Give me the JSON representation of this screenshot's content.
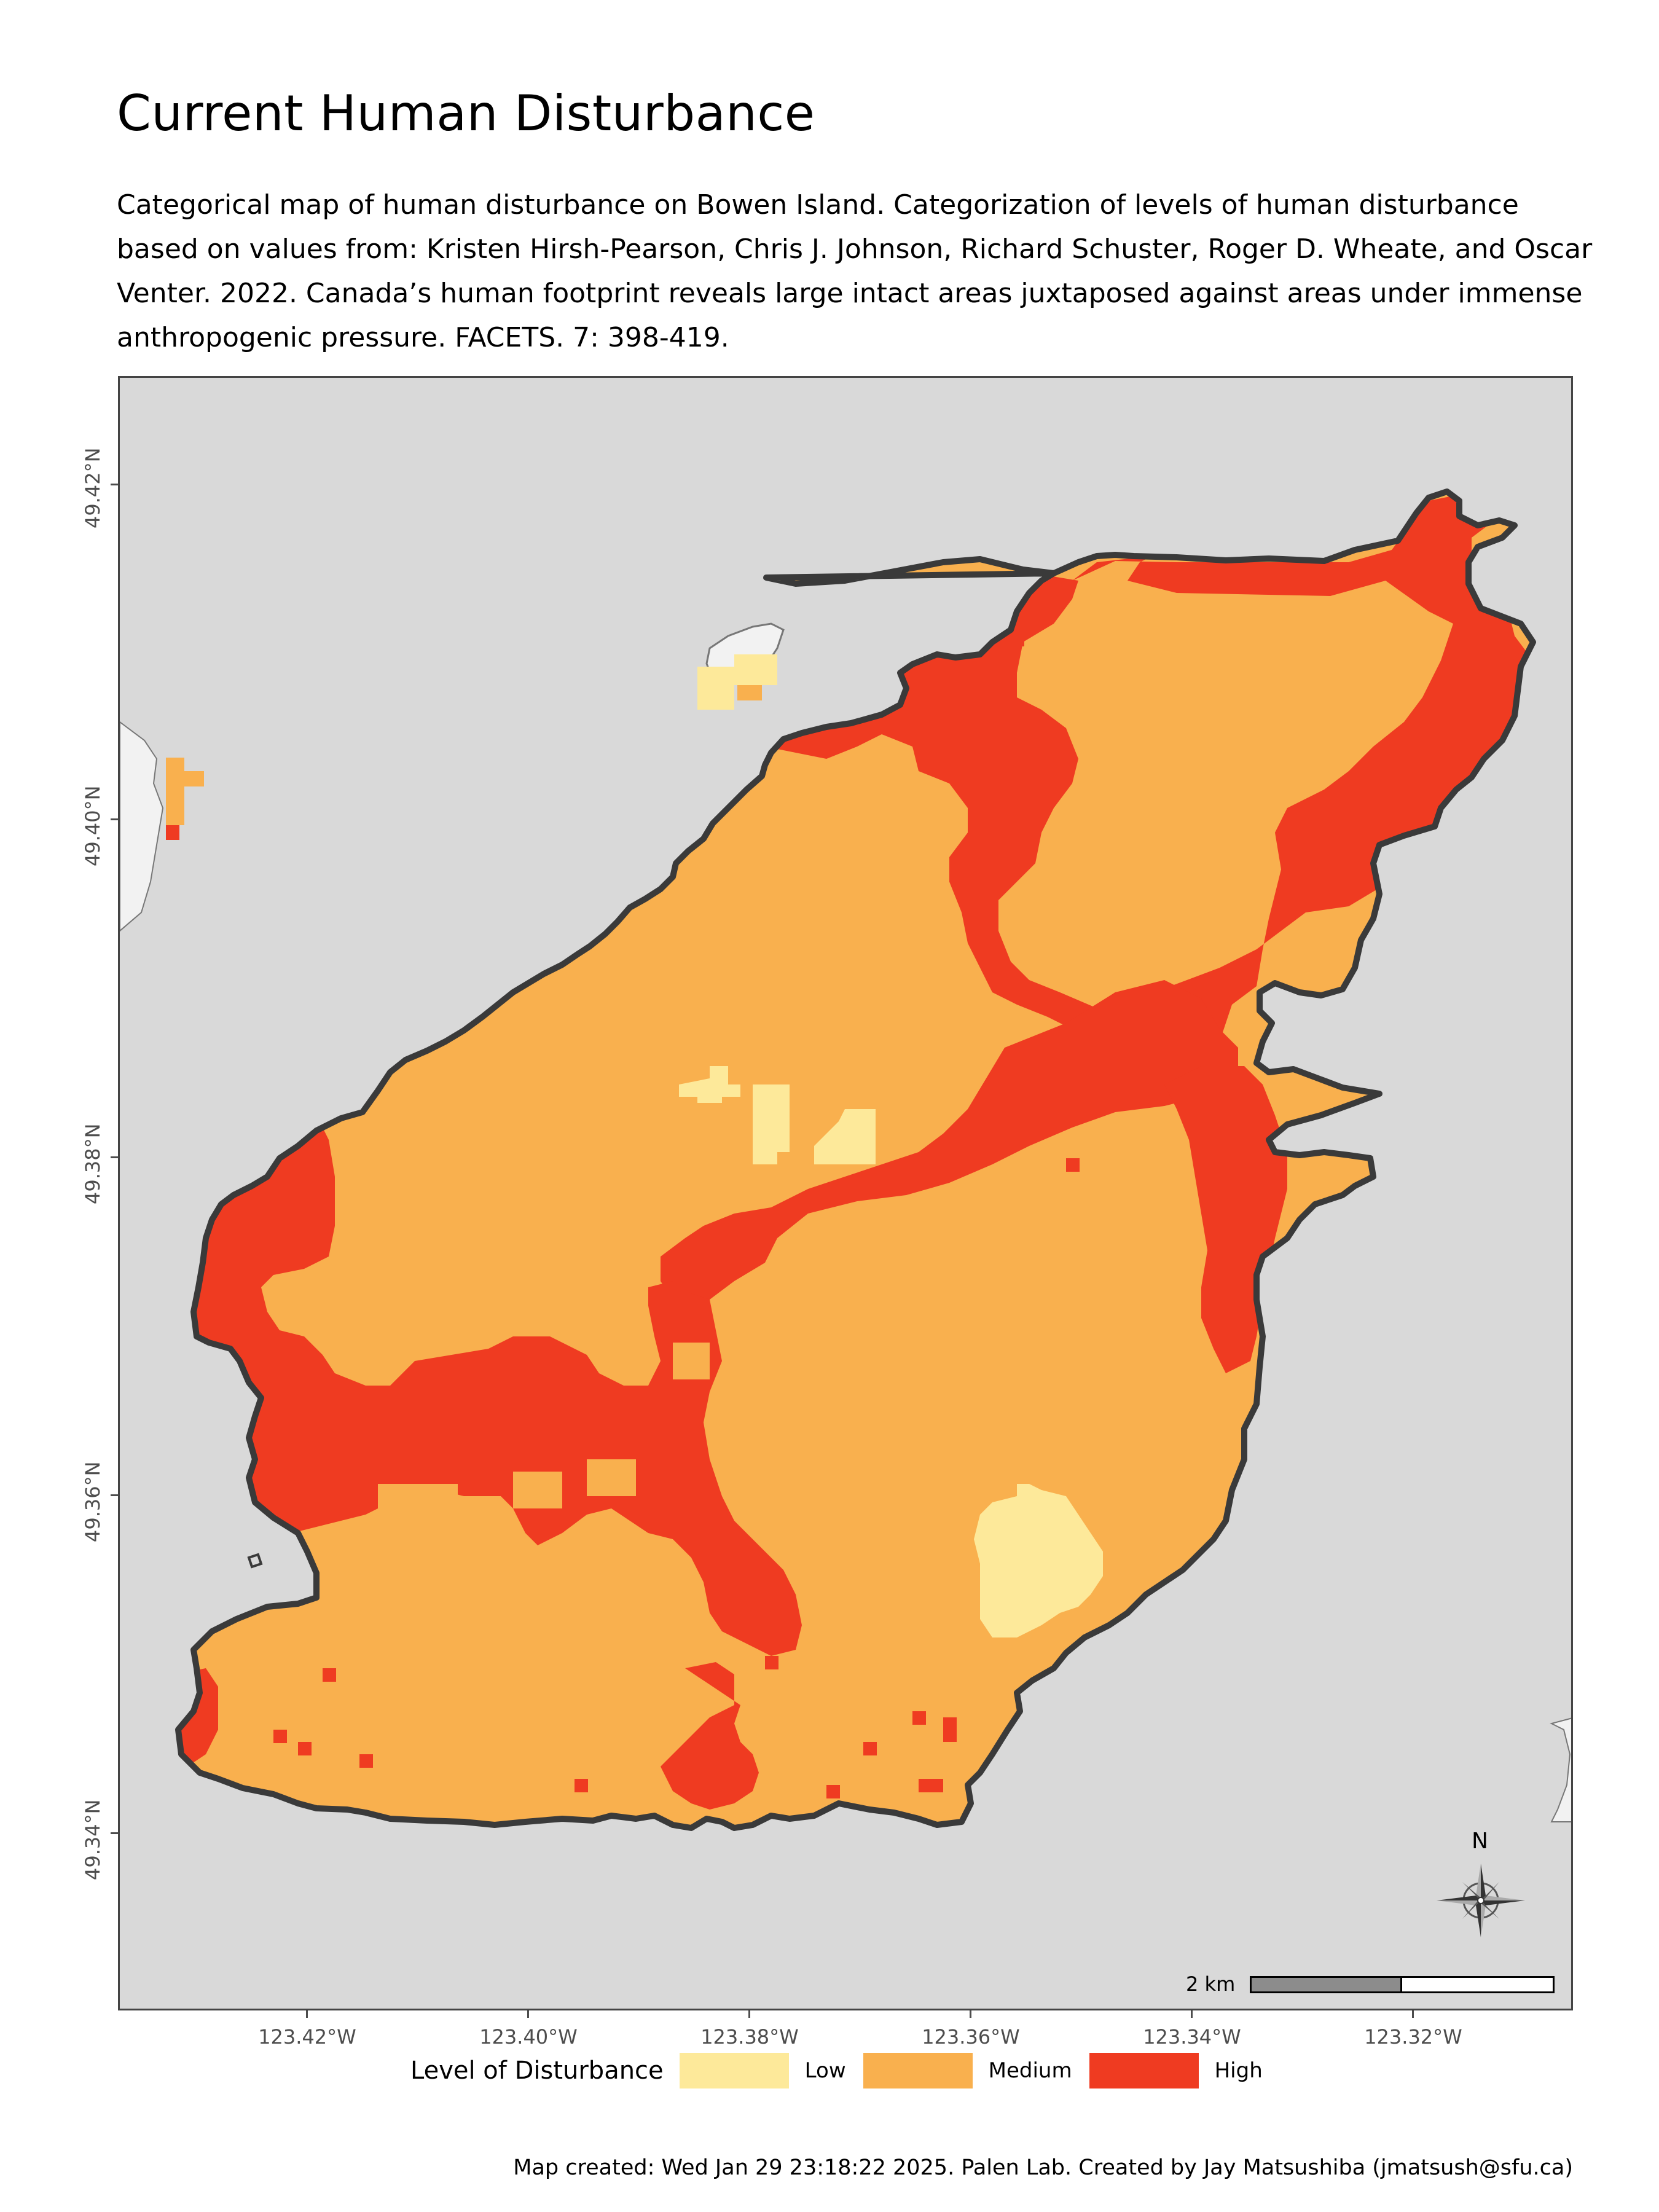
{
  "title": "Current Human Disturbance",
  "subtitle": "Categorical map of human disturbance on Bowen Island. Categorization of levels of human disturbance based on values from: Kristen Hirsh-Pearson, Chris J. Johnson, Richard Schuster, Roger D. Wheate, and Oscar Venter. 2022. Canada’s human footprint reveals large intact areas juxtaposed against areas under immense anthropogenic pressure. FACETS. 7: 398-419.",
  "map": {
    "y_axis_labels": [
      "49.42°N",
      "49.40°N",
      "49.38°N",
      "49.36°N",
      "49.34°N"
    ],
    "x_axis_labels": [
      "123.42°W",
      "123.40°W",
      "123.38°W",
      "123.36°W",
      "123.34°W",
      "123.32°W"
    ],
    "background_color": "#d9d9d9",
    "coastline_color": "#3a3a3a"
  },
  "legend": {
    "title": "Level of Disturbance",
    "items": [
      {
        "label": "Low",
        "color": "#fde99a"
      },
      {
        "label": "Medium",
        "color": "#f9b04e"
      },
      {
        "label": "High",
        "color": "#ef3b21"
      }
    ]
  },
  "scalebar": {
    "label": "2 km"
  },
  "north_arrow": {
    "label": "N",
    "icon": "compass-rose-icon"
  },
  "caption": "Map created: Wed Jan 29 23:18:22 2025. Palen Lab. Created by Jay Matsushiba (jmatsush@sfu.ca)"
}
